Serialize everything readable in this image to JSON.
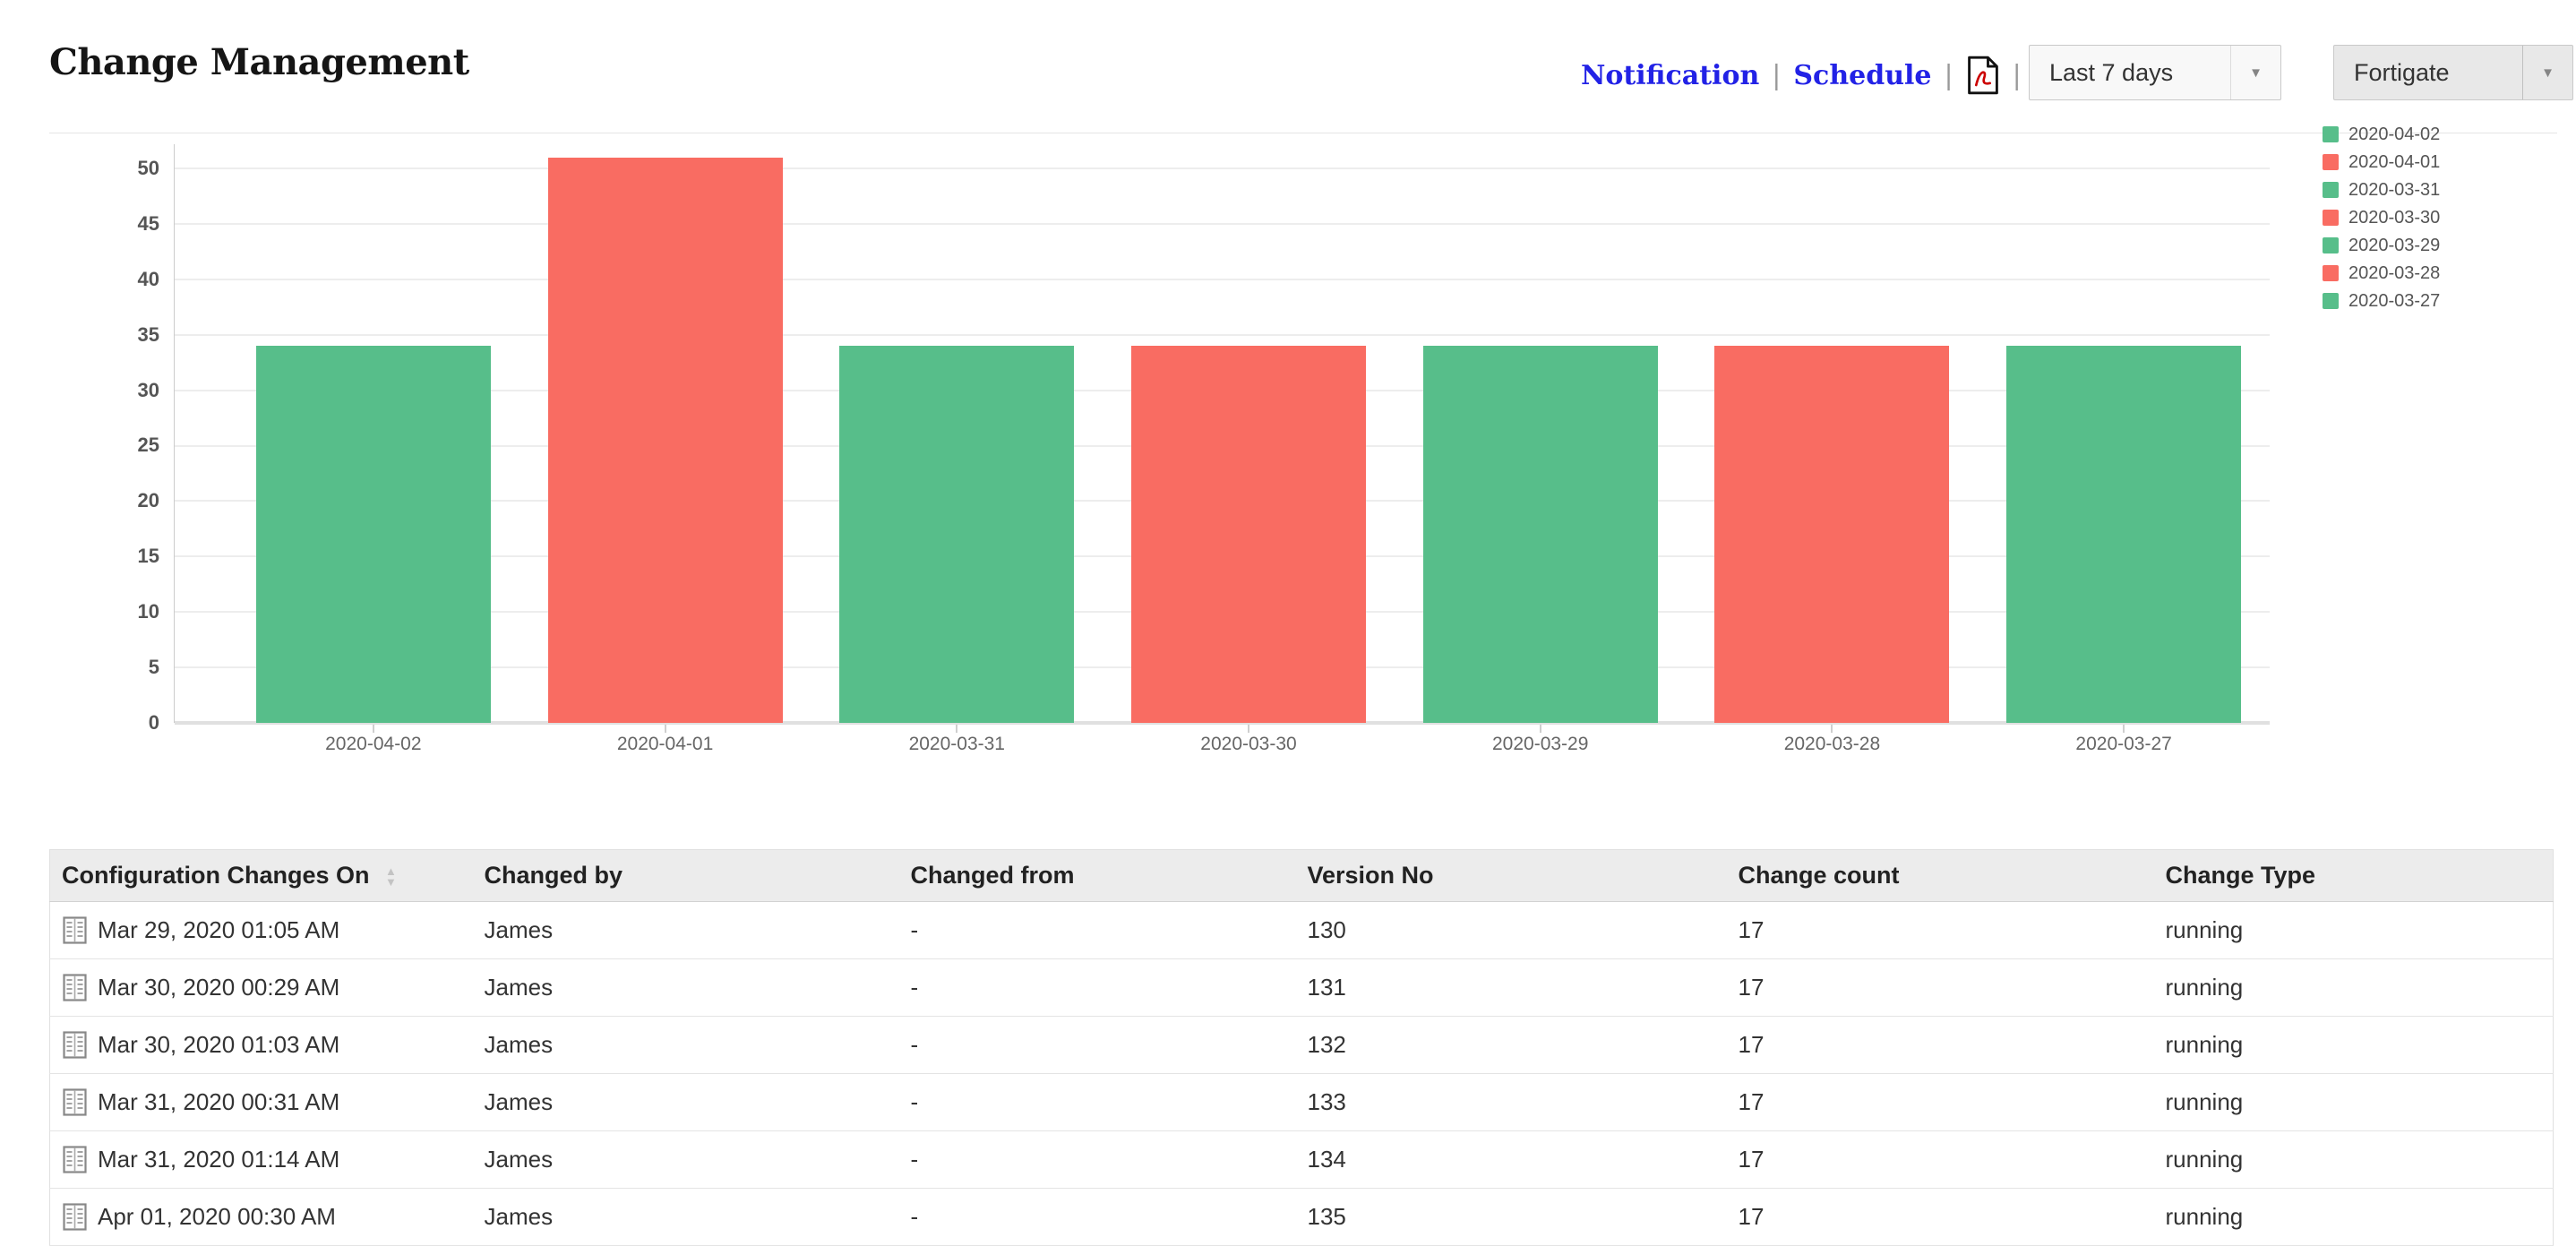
{
  "page": {
    "title": "Change Management"
  },
  "toolbar": {
    "notification_label": "Notification",
    "schedule_label": "Schedule",
    "separator": "|",
    "pdf_icon": "export-pdf-icon",
    "period_dropdown": {
      "value": "Last 7 days"
    },
    "device_dropdown": {
      "value": "Fortigate"
    }
  },
  "colors": {
    "bar_green": "#57BE8A",
    "bar_red": "#F96C62",
    "link_blue": "#2222E6"
  },
  "chart_data": {
    "type": "bar",
    "title": "",
    "xlabel": "",
    "ylabel": "",
    "categories": [
      "2020-04-02",
      "2020-04-01",
      "2020-03-31",
      "2020-03-30",
      "2020-03-29",
      "2020-03-28",
      "2020-03-27"
    ],
    "values": [
      34,
      51,
      34,
      34,
      34,
      34,
      34
    ],
    "bar_colors": [
      "#57BE8A",
      "#F96C62",
      "#57BE8A",
      "#F96C62",
      "#57BE8A",
      "#F96C62",
      "#57BE8A"
    ],
    "ylim": [
      0,
      52
    ],
    "yticks": [
      0,
      5,
      10,
      15,
      20,
      25,
      30,
      35,
      40,
      45,
      50
    ],
    "grid": true,
    "legend_position": "right",
    "legend": [
      {
        "label": "2020-04-02",
        "color": "#57BE8A"
      },
      {
        "label": "2020-04-01",
        "color": "#F96C62"
      },
      {
        "label": "2020-03-31",
        "color": "#57BE8A"
      },
      {
        "label": "2020-03-30",
        "color": "#F96C62"
      },
      {
        "label": "2020-03-29",
        "color": "#57BE8A"
      },
      {
        "label": "2020-03-28",
        "color": "#F96C62"
      },
      {
        "label": "2020-03-27",
        "color": "#57BE8A"
      }
    ]
  },
  "table": {
    "columns": [
      {
        "label": "Configuration Changes On",
        "sortable": true
      },
      {
        "label": "Changed by"
      },
      {
        "label": "Changed from"
      },
      {
        "label": "Version No"
      },
      {
        "label": "Change count"
      },
      {
        "label": "Change Type"
      }
    ],
    "rows": [
      {
        "changed_on": "Mar 29, 2020 01:05 AM",
        "changed_by": "James",
        "changed_from": "-",
        "version_no": "130",
        "change_count": "17",
        "change_type": "running"
      },
      {
        "changed_on": "Mar 30, 2020 00:29 AM",
        "changed_by": "James",
        "changed_from": "-",
        "version_no": "131",
        "change_count": "17",
        "change_type": "running"
      },
      {
        "changed_on": "Mar 30, 2020 01:03 AM",
        "changed_by": "James",
        "changed_from": "-",
        "version_no": "132",
        "change_count": "17",
        "change_type": "running"
      },
      {
        "changed_on": "Mar 31, 2020 00:31 AM",
        "changed_by": "James",
        "changed_from": "-",
        "version_no": "133",
        "change_count": "17",
        "change_type": "running"
      },
      {
        "changed_on": "Mar 31, 2020 01:14 AM",
        "changed_by": "James",
        "changed_from": "-",
        "version_no": "134",
        "change_count": "17",
        "change_type": "running"
      },
      {
        "changed_on": "Apr 01, 2020 00:30 AM",
        "changed_by": "James",
        "changed_from": "-",
        "version_no": "135",
        "change_count": "17",
        "change_type": "running"
      }
    ]
  }
}
